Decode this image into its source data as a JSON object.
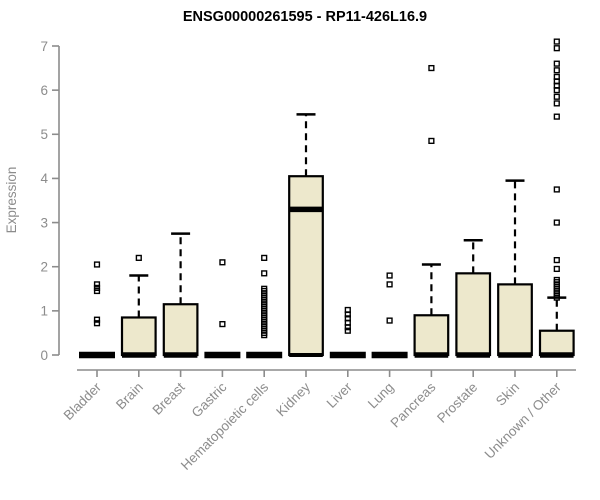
{
  "chart_data": {
    "type": "boxplot",
    "title": "ENSG00000261595 - RP11-426L16.9",
    "ylabel": "Expression",
    "xlabel": "",
    "ylim": [
      0,
      7
    ],
    "yticks": [
      0,
      1,
      2,
      3,
      4,
      5,
      6,
      7
    ],
    "grid": false,
    "legend": "none",
    "colors": {
      "box_fill": "#EDE8CC",
      "box_stroke": "#000000",
      "axis": "#8C8C8C",
      "tick_text": "#8C8C8C",
      "title_text": "#000000"
    },
    "categories": [
      "Bladder",
      "Brain",
      "Breast",
      "Gastric",
      "Hematopoietic cells",
      "Kidney",
      "Liver",
      "Lung",
      "Pancreas",
      "Prostate",
      "Skin",
      "Unknown / Other"
    ],
    "boxes": [
      {
        "label": "Bladder",
        "q1": 0,
        "median": 0,
        "q3": 0,
        "whisker_low": 0,
        "whisker_high": 0,
        "outliers": [
          0.72,
          0.8,
          1.45,
          1.52,
          1.6,
          2.05
        ]
      },
      {
        "label": "Brain",
        "q1": 0,
        "median": 0,
        "q3": 0.85,
        "whisker_low": 0,
        "whisker_high": 1.8,
        "outliers": [
          2.2
        ]
      },
      {
        "label": "Breast",
        "q1": 0,
        "median": 0,
        "q3": 1.15,
        "whisker_low": 0,
        "whisker_high": 2.75,
        "outliers": []
      },
      {
        "label": "Gastric",
        "q1": 0,
        "median": 0,
        "q3": 0,
        "whisker_low": 0,
        "whisker_high": 0,
        "outliers": [
          0.7,
          2.1
        ]
      },
      {
        "label": "Hematopoietic cells",
        "q1": 0,
        "median": 0,
        "q3": 0,
        "whisker_low": 0,
        "whisker_high": 0,
        "outliers": [
          0.45,
          0.5,
          0.55,
          0.6,
          0.65,
          0.7,
          0.75,
          0.8,
          0.85,
          0.9,
          0.95,
          1.0,
          1.05,
          1.1,
          1.15,
          1.2,
          1.25,
          1.3,
          1.35,
          1.4,
          1.45,
          1.5,
          1.85,
          2.2
        ]
      },
      {
        "label": "Kidney",
        "q1": 0,
        "median": 3.3,
        "q3": 4.05,
        "whisker_low": 0,
        "whisker_high": 5.45,
        "outliers": []
      },
      {
        "label": "Liver",
        "q1": 0,
        "median": 0,
        "q3": 0,
        "whisker_low": 0,
        "whisker_high": 0,
        "outliers": [
          0.55,
          0.63,
          0.73,
          0.83,
          0.92,
          1.02
        ]
      },
      {
        "label": "Lung",
        "q1": 0,
        "median": 0,
        "q3": 0,
        "whisker_low": 0,
        "whisker_high": 0,
        "outliers": [
          0.78,
          1.6,
          1.8
        ]
      },
      {
        "label": "Pancreas",
        "q1": 0,
        "median": 0,
        "q3": 0.9,
        "whisker_low": 0,
        "whisker_high": 2.05,
        "outliers": [
          4.85,
          6.5
        ]
      },
      {
        "label": "Prostate",
        "q1": 0,
        "median": 0,
        "q3": 1.85,
        "whisker_low": 0,
        "whisker_high": 2.6,
        "outliers": []
      },
      {
        "label": "Skin",
        "q1": 0,
        "median": 0,
        "q3": 1.6,
        "whisker_low": 0,
        "whisker_high": 3.95,
        "outliers": []
      },
      {
        "label": "Unknown / Other",
        "q1": 0,
        "median": 0,
        "q3": 0.55,
        "whisker_low": 0,
        "whisker_high": 1.3,
        "outliers": [
          1.3,
          1.35,
          1.4,
          1.45,
          1.5,
          1.55,
          1.6,
          1.65,
          1.7,
          1.95,
          2.15,
          3.0,
          3.75,
          5.4,
          5.7,
          5.85,
          6.0,
          6.1,
          6.2,
          6.3,
          6.45,
          6.6,
          6.95,
          7.1
        ]
      }
    ]
  }
}
